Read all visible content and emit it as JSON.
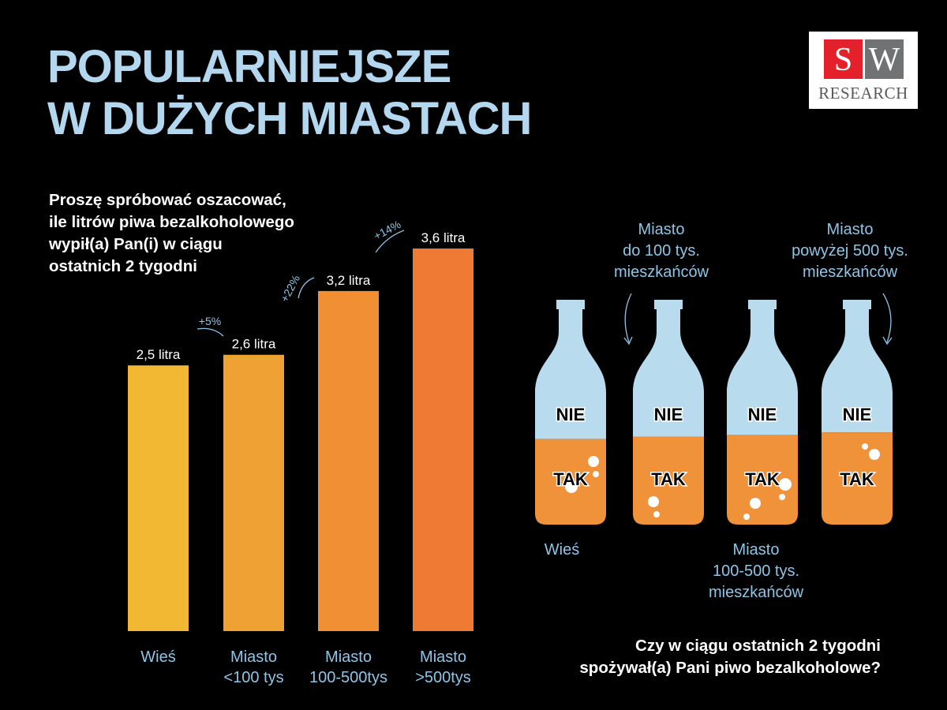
{
  "title": [
    "POPULARNIEJSZE",
    "W DUŻYCH MIASTACH"
  ],
  "logo": {
    "s": "S",
    "w": "W",
    "research": "RESEARCH"
  },
  "question_left": [
    "Proszę spróbować oszacować,",
    "ile litrów piwa bezalkoholowego",
    "wypił(a) Pan(i) w ciągu",
    "ostatnich 2 tygodni"
  ],
  "question_right": [
    "Czy w ciągu ostatnich 2 tygodni",
    "spożywał(a) Pani piwo bezalkoholowe?"
  ],
  "colors": {
    "title": "#b3d7ee",
    "label_blue": "#8ec5e6",
    "beer": "#f0923a",
    "bottle_top": "#b8dbee"
  },
  "chart_data": [
    {
      "type": "bar",
      "categories": [
        [
          "Wieś"
        ],
        [
          "Miasto",
          "<100 tys"
        ],
        [
          "Miasto",
          "100-500tys"
        ],
        [
          "Miasto",
          ">500tys"
        ]
      ],
      "values": [
        2.5,
        2.6,
        3.2,
        3.6
      ],
      "value_labels": [
        "2,5 litra",
        "2,6 litra",
        "3,2 litra",
        "3,6 litra"
      ],
      "changes": [
        "+5%",
        "+22%",
        "+14%"
      ],
      "bar_colors": [
        "#f2b733",
        "#f0a133",
        "#f08f33",
        "#ef7a33"
      ],
      "ylim": [
        0,
        3.6
      ],
      "title": "",
      "xlabel": "",
      "ylabel": ""
    },
    {
      "type": "bar",
      "categories": [
        "Wieś",
        "Miasto do 100 tys. mieszkańców",
        "Miasto 100-500 tys. mieszkańców",
        "Miasto powyżej 500 tys. mieszkańców"
      ],
      "series": [
        {
          "name": "TAK",
          "values": [
            38,
            39,
            40,
            41
          ]
        },
        {
          "name": "NIE",
          "values": [
            62,
            61,
            60,
            59
          ]
        }
      ],
      "labels": {
        "tak": "TAK",
        "nie": "NIE"
      },
      "bottle_labels": [
        [
          "Wieś"
        ],
        [
          "Miasto",
          "do 100 tys.",
          "mieszkańców"
        ],
        [
          "Miasto",
          "100-500 tys.",
          "mieszkańców"
        ],
        [
          "Miasto",
          "powyżej 500 tys.",
          "mieszkańców"
        ]
      ]
    }
  ]
}
